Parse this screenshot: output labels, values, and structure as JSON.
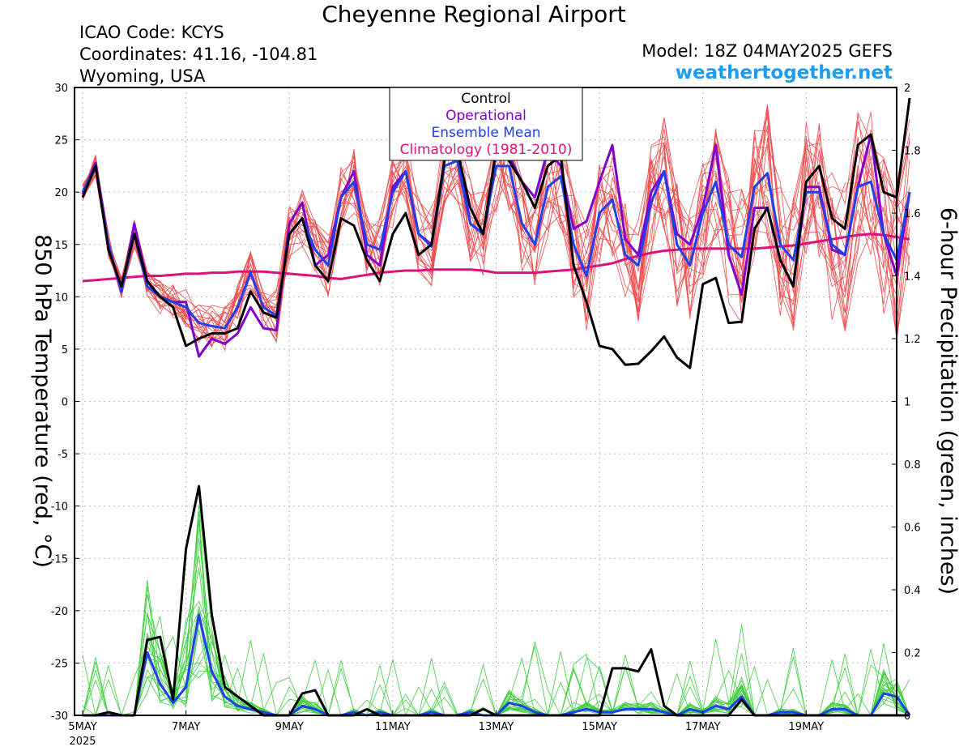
{
  "header": {
    "title": "Cheyenne Regional Airport",
    "icao": "ICAO Code: KCYS",
    "coords": "Coordinates: 41.16, -104.81",
    "region": "Wyoming, USA",
    "model": "Model: 18Z 04MAY2025 GEFS",
    "brand": "weathertogether.net"
  },
  "colors": {
    "control": "#000000",
    "operational": "#8000d0",
    "ensemble_mean": "#2040f0",
    "climatology": "#e0107a",
    "members_temp": "#f05050",
    "members_precip": "#40d040",
    "brand": "#1e9cf0",
    "grid": "#bbbbbb"
  },
  "chart_data": {
    "type": "line",
    "title": "Cheyenne Regional Airport",
    "ylabel": "850 hPa Temperature (red, °C)",
    "y2label": "6-hour Precipitation (green, inches)",
    "ylim": [
      -30,
      30
    ],
    "y2lim": [
      0,
      2
    ],
    "yticks": [
      "30",
      "25",
      "20",
      "15",
      "10",
      "5",
      "0",
      "-5",
      "-10",
      "-15",
      "-20",
      "-25",
      "-30"
    ],
    "y2ticks": [
      "2",
      "1.8",
      "1.6",
      "1.4",
      "1.2",
      "1",
      "0.8",
      "0.6",
      "0.4",
      "0.2",
      "0"
    ],
    "xticks": [
      {
        "label": "5MAY",
        "sub": "2025",
        "day": 5
      },
      {
        "label": "7MAY",
        "day": 7
      },
      {
        "label": "9MAY",
        "day": 9
      },
      {
        "label": "11MAY",
        "day": 11
      },
      {
        "label": "13MAY",
        "day": 13
      },
      {
        "label": "15MAY",
        "day": 15
      },
      {
        "label": "17MAY",
        "day": 17
      },
      {
        "label": "19MAY",
        "day": 19
      }
    ],
    "x_start_day": 5.0,
    "x_step_days": 0.25,
    "x_end_day": 20.75,
    "grid": true,
    "legend_position": "top-center",
    "legend": [
      "Control",
      "Operational",
      "Ensemble Mean",
      "Climatology (1981-2010)"
    ],
    "temperature_series": [
      {
        "name": "Control",
        "values": [
          19.5,
          22.5,
          14.5,
          11.0,
          16.0,
          11.5,
          10.0,
          9.0,
          5.3,
          6.0,
          6.5,
          6.5,
          7.0,
          10.5,
          8.5,
          8.0,
          16.0,
          17.5,
          13.0,
          11.5,
          17.5,
          16.8,
          13.5,
          11.5,
          16.0,
          18.0,
          14.0,
          15.0,
          23.0,
          24.0,
          18.5,
          16.0,
          24.0,
          23.0,
          21.0,
          18.5,
          22.5,
          23.5,
          13.0,
          9.5,
          5.3,
          5.0,
          3.5,
          3.6,
          4.8,
          6.2,
          4.2,
          3.2,
          11.2,
          11.8,
          7.5,
          7.6,
          16.5,
          18.5,
          13.5,
          11.0,
          21.0,
          22.5,
          17.5,
          16.5,
          24.5,
          25.5,
          20.0,
          19.5,
          29.0
        ]
      },
      {
        "name": "Operational",
        "values": [
          19.8,
          22.8,
          15.0,
          10.5,
          17.0,
          11.5,
          10.0,
          9.5,
          9.5,
          4.3,
          6.0,
          5.5,
          6.5,
          9.0,
          7.0,
          6.8,
          17.0,
          19.0,
          13.0,
          14.0,
          19.5,
          22.0,
          14.0,
          13.0,
          20.5,
          22.0,
          16.0,
          15.0,
          23.0,
          24.5,
          17.0,
          16.0,
          24.0,
          23.5,
          21.0,
          19.5,
          24.0,
          22.5,
          16.5,
          17.2,
          21.0,
          24.5,
          15.5,
          14.0,
          20.0,
          22.0,
          16.0,
          15.0,
          18.5,
          24.5,
          14.0,
          10.2,
          18.5,
          18.5,
          13.5,
          11.0,
          20.5,
          20.5,
          14.5,
          14.0,
          20.5,
          25.5,
          16.0,
          12.0,
          20.0
        ]
      },
      {
        "name": "Ensemble Mean",
        "values": [
          20.0,
          22.5,
          15.0,
          10.5,
          16.0,
          11.0,
          10.0,
          9.5,
          9.0,
          7.5,
          7.2,
          7.0,
          9.0,
          12.3,
          9.0,
          8.2,
          16.0,
          17.5,
          14.5,
          13.0,
          19.5,
          21.0,
          15.0,
          14.5,
          20.0,
          22.0,
          16.0,
          14.8,
          22.5,
          23.0,
          17.0,
          16.0,
          22.5,
          22.5,
          17.0,
          15.0,
          20.5,
          21.5,
          15.0,
          12.0,
          18.0,
          19.3,
          14.0,
          13.0,
          19.0,
          22.0,
          15.0,
          13.0,
          18.0,
          21.0,
          15.0,
          13.8,
          20.5,
          21.8,
          15.0,
          13.5,
          20.0,
          20.0,
          15.0,
          14.0,
          20.5,
          21.0,
          16.0,
          13.5,
          20.0
        ]
      },
      {
        "name": "Climatology (1981-2010)",
        "values": [
          11.5,
          11.6,
          11.7,
          11.8,
          11.9,
          12.0,
          12.0,
          12.1,
          12.2,
          12.2,
          12.3,
          12.3,
          12.4,
          12.4,
          12.4,
          12.3,
          12.2,
          12.1,
          12.0,
          11.8,
          11.7,
          11.9,
          12.1,
          12.3,
          12.4,
          12.5,
          12.5,
          12.6,
          12.6,
          12.6,
          12.6,
          12.5,
          12.3,
          12.3,
          12.3,
          12.3,
          12.4,
          12.5,
          12.6,
          12.8,
          13.0,
          13.2,
          13.6,
          13.9,
          14.2,
          14.4,
          14.5,
          14.6,
          14.6,
          14.6,
          14.6,
          14.6,
          14.6,
          14.7,
          14.8,
          14.9,
          15.1,
          15.3,
          15.5,
          15.7,
          15.9,
          16.0,
          15.9,
          15.7,
          15.5
        ]
      }
    ],
    "precip_series": [
      {
        "name": "Control",
        "values": [
          0.0,
          0.0,
          0.01,
          0.0,
          0.0,
          0.24,
          0.25,
          0.05,
          0.53,
          0.73,
          0.32,
          0.09,
          0.06,
          0.03,
          0.0,
          0.0,
          0.0,
          0.07,
          0.08,
          0.0,
          0.0,
          0.0,
          0.02,
          0.0,
          0.0,
          0.0,
          0.0,
          0.0,
          0.0,
          0.0,
          0.0,
          0.02,
          0.0,
          0.0,
          0.0,
          0.0,
          0.0,
          0.0,
          0.0,
          0.0,
          0.0,
          0.15,
          0.15,
          0.14,
          0.21,
          0.03,
          0.0,
          0.0,
          0.0,
          0.0,
          0.0,
          0.05,
          0.0,
          0.0,
          0.0,
          0.0,
          0.0,
          0.0,
          0.0,
          0.0,
          0.0,
          0.0,
          0.0,
          0.0,
          0.0
        ]
      },
      {
        "name": "Ensemble Mean",
        "values": [
          0.0,
          0.0,
          0.0,
          0.0,
          0.0,
          0.2,
          0.1,
          0.04,
          0.09,
          0.32,
          0.14,
          0.06,
          0.03,
          0.02,
          0.01,
          0.0,
          0.0,
          0.03,
          0.02,
          0.0,
          0.0,
          0.01,
          0.0,
          0.01,
          0.0,
          0.0,
          0.0,
          0.01,
          0.0,
          0.0,
          0.01,
          0.0,
          0.0,
          0.04,
          0.03,
          0.01,
          0.0,
          0.0,
          0.01,
          0.02,
          0.01,
          0.01,
          0.02,
          0.02,
          0.02,
          0.01,
          0.0,
          0.02,
          0.01,
          0.03,
          0.02,
          0.06,
          0.0,
          0.0,
          0.01,
          0.01,
          0.0,
          0.0,
          0.02,
          0.02,
          0.0,
          0.0,
          0.07,
          0.06,
          0.0
        ]
      }
    ]
  }
}
